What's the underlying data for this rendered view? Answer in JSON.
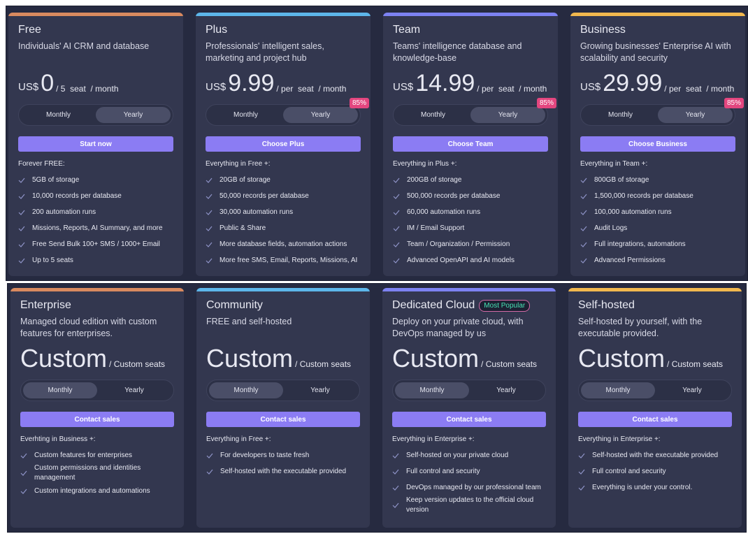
{
  "rows": [
    {
      "active_toggle": 1,
      "cards": [
        {
          "accent": "#d98a5f",
          "name": "Free",
          "description": "Individuals' AI CRM and database",
          "currency": "US$",
          "price": "0",
          "unit": "/ 5  seat  / month",
          "toggle": [
            "Monthly",
            "Yearly"
          ],
          "button": "Start now",
          "intro": "Forever FREE:",
          "features": [
            "5GB of storage",
            "10,000 records per database",
            "200 automation runs",
            "Missions, Reports, AI Summary, and more",
            "Free Send Bulk 100+ SMS / 1000+ Email",
            "Up to 5 seats"
          ]
        },
        {
          "accent": "#5db6ea",
          "name": "Plus",
          "description": "Professionals' intelligent sales, marketing and project hub",
          "currency": "US$",
          "price": "9.99",
          "unit": "/ per  seat  / month",
          "toggle": [
            "Monthly",
            "Yearly"
          ],
          "discount": "85%",
          "button": "Choose Plus",
          "intro": "Everything in Free +:",
          "features": [
            "20GB of storage",
            "50,000 records per database",
            "30,000 automation runs",
            "Public & Share",
            "More database fields, automation actions",
            "More free SMS, Email, Reports, Missions, AI"
          ]
        },
        {
          "accent": "#7d82f2",
          "name": "Team",
          "description": "Teams' intelligence database and knowledge-base",
          "currency": "US$",
          "price": "14.99",
          "unit": "/ per  seat  / month",
          "toggle": [
            "Monthly",
            "Yearly"
          ],
          "discount": "85%",
          "button": "Choose Team",
          "intro": "Everything in Plus +:",
          "features": [
            "200GB of storage",
            "500,000 records per database",
            "60,000 automation runs",
            "IM / Email Support",
            "Team / Organization / Permission",
            "Advanced OpenAPI and AI models"
          ]
        },
        {
          "accent": "#f2b84e",
          "name": "Business",
          "description": "Growing businesses' Enterprise AI with scalability and security",
          "currency": "US$",
          "price": "29.99",
          "unit": "/ per  seat  / month",
          "toggle": [
            "Monthly",
            "Yearly"
          ],
          "discount": "85%",
          "button": "Choose Business",
          "intro": "Everything in Team +:",
          "features": [
            "800GB of storage",
            "1,500,000 records per database",
            "100,000 automation runs",
            "Audit Logs",
            "Full integrations, automations",
            "Advanced Permissions"
          ]
        }
      ]
    },
    {
      "active_toggle": 0,
      "cards": [
        {
          "accent": "#d98a5f",
          "name": "Enterprise",
          "description": "Managed cloud edition with custom features for enterprises.",
          "price": "Custom",
          "unit": "/ Custom seats",
          "toggle": [
            "Monthly",
            "Yearly"
          ],
          "button": "Contact sales",
          "intro": "Everhting in Business +:",
          "features": [
            "Custom features for enterprises",
            "Custom permissions and identities management",
            "Custom integrations and automations"
          ]
        },
        {
          "accent": "#5db6ea",
          "name": "Community",
          "description": "FREE and self-hosted",
          "price": "Custom",
          "unit": "/ Custom seats",
          "toggle": [
            "Monthly",
            "Yearly"
          ],
          "button": "Contact sales",
          "intro": "Everything in Free +:",
          "features": [
            "For developers to taste fresh",
            "Self-hosted with the executable provided"
          ]
        },
        {
          "accent": "#7d82f2",
          "name": "Dedicated Cloud",
          "badge": "Most Popular",
          "description": "Deploy on your private cloud, with DevOps managed by us",
          "price": "Custom",
          "unit": "/ Custom seats",
          "toggle": [
            "Monthly",
            "Yearly"
          ],
          "button": "Contact sales",
          "intro": "Everything in Enterprise +:",
          "features": [
            "Self-hosted on your private cloud",
            "Full control and security",
            "DevOps managed by our professional team",
            "Keep version updates to the official cloud version"
          ]
        },
        {
          "accent": "#f2b84e",
          "name": "Self-hosted",
          "description": "Self-hosted by yourself, with the executable provided.",
          "price": "Custom",
          "unit": "/ Custom seats",
          "toggle": [
            "Monthly",
            "Yearly"
          ],
          "button": "Contact sales",
          "intro": "Everything in Enterprise +:",
          "features": [
            "Self-hosted with the executable provided",
            "Full control and security",
            "Everything is under your control."
          ]
        }
      ]
    }
  ]
}
